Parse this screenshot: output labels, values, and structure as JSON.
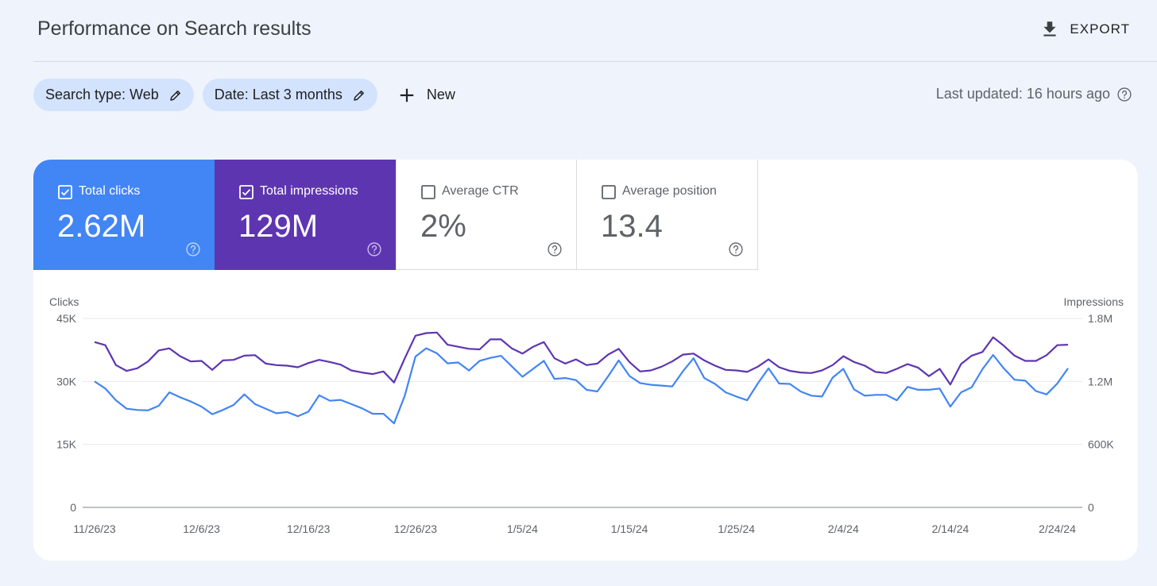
{
  "header": {
    "title": "Performance on Search results",
    "export_label": "EXPORT",
    "export_icon": "download-icon"
  },
  "filters": {
    "chips": [
      {
        "label": "Search type: Web",
        "icon": "pencil-icon"
      },
      {
        "label": "Date: Last 3 months",
        "icon": "pencil-icon"
      }
    ],
    "new_label": "New",
    "new_icon": "plus-icon",
    "last_updated": "Last updated: 16 hours ago"
  },
  "metrics": [
    {
      "label": "Total clicks",
      "value": "2.62M",
      "checked": true,
      "color": "#4285f4"
    },
    {
      "label": "Total impressions",
      "value": "129M",
      "checked": true,
      "color": "#5e35b1"
    },
    {
      "label": "Average CTR",
      "value": "2%",
      "checked": false
    },
    {
      "label": "Average position",
      "value": "13.4",
      "checked": false
    }
  ],
  "chart_data": {
    "type": "line",
    "left_axis_label": "Clicks",
    "right_axis_label": "Impressions",
    "left_ticks": [
      "0",
      "15K",
      "30K",
      "45K"
    ],
    "right_ticks": [
      "0",
      "600K",
      "1.2M",
      "1.8M"
    ],
    "left_ylim": [
      0,
      45000
    ],
    "right_ylim": [
      0,
      1800000
    ],
    "x_tick_labels": [
      "11/26/23",
      "12/6/23",
      "12/16/23",
      "12/26/23",
      "1/5/24",
      "1/15/24",
      "1/25/24",
      "2/4/24",
      "2/14/24",
      "2/24/24"
    ],
    "x_tick_indices": [
      0,
      10,
      20,
      30,
      40,
      50,
      60,
      70,
      80,
      90
    ],
    "series": [
      {
        "name": "Total impressions",
        "axis": "right",
        "color": "#5e35b1",
        "values": [
          1575000,
          1545000,
          1355000,
          1300000,
          1325000,
          1390000,
          1495000,
          1515000,
          1440000,
          1390000,
          1395000,
          1310000,
          1400000,
          1405000,
          1445000,
          1450000,
          1370000,
          1355000,
          1350000,
          1335000,
          1375000,
          1405000,
          1385000,
          1360000,
          1305000,
          1285000,
          1270000,
          1295000,
          1190000,
          1420000,
          1635000,
          1660000,
          1665000,
          1550000,
          1530000,
          1510000,
          1505000,
          1600000,
          1600000,
          1515000,
          1465000,
          1530000,
          1575000,
          1420000,
          1370000,
          1410000,
          1355000,
          1370000,
          1455000,
          1510000,
          1385000,
          1295000,
          1305000,
          1340000,
          1390000,
          1455000,
          1465000,
          1400000,
          1350000,
          1310000,
          1305000,
          1290000,
          1340000,
          1410000,
          1335000,
          1300000,
          1285000,
          1280000,
          1305000,
          1355000,
          1440000,
          1385000,
          1350000,
          1290000,
          1280000,
          1320000,
          1365000,
          1330000,
          1250000,
          1320000,
          1170000,
          1365000,
          1445000,
          1480000,
          1620000,
          1540000,
          1445000,
          1395000,
          1395000,
          1450000,
          1545000,
          1550000
        ]
      },
      {
        "name": "Total clicks",
        "axis": "left",
        "color": "#4285f4",
        "values": [
          30000,
          28300,
          25500,
          23500,
          23200,
          23100,
          24200,
          27400,
          26200,
          25200,
          24000,
          22200,
          23200,
          24400,
          26900,
          24600,
          23500,
          22400,
          22700,
          21700,
          22800,
          26700,
          25400,
          25600,
          24600,
          23600,
          22300,
          22300,
          20000,
          26600,
          35900,
          37900,
          36700,
          34300,
          34500,
          32600,
          34900,
          35600,
          36100,
          33600,
          31100,
          33000,
          34900,
          30600,
          30800,
          30300,
          28000,
          27600,
          31200,
          35000,
          31300,
          29600,
          29200,
          29000,
          28800,
          32400,
          35500,
          30800,
          29400,
          27400,
          26400,
          25500,
          29500,
          33100,
          29500,
          29400,
          27600,
          26600,
          26400,
          30900,
          33000,
          28100,
          26600,
          26800,
          26800,
          25500,
          28700,
          28000,
          28000,
          28300,
          24000,
          27400,
          28600,
          32900,
          36300,
          33100,
          30400,
          30200,
          27700,
          26900,
          29500,
          33100
        ]
      }
    ]
  }
}
